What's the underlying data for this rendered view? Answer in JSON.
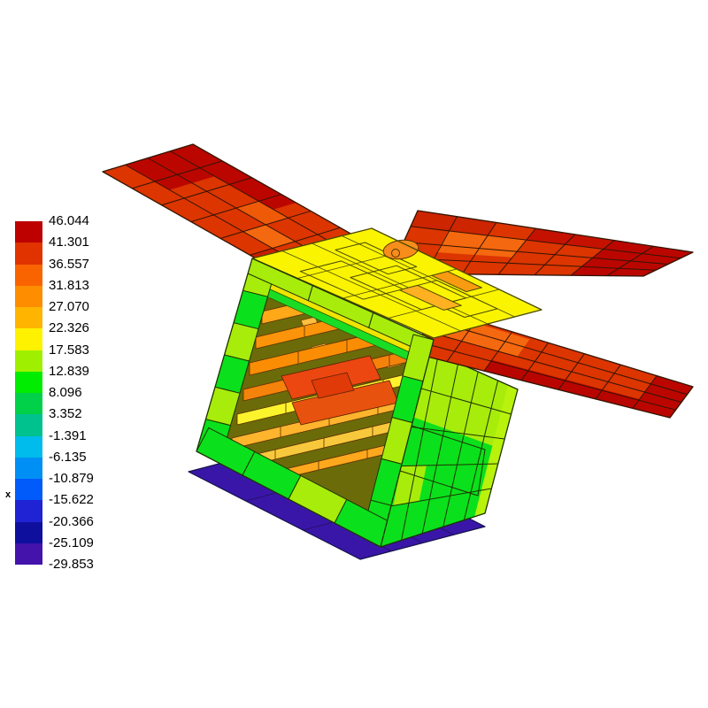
{
  "app": {
    "background": "#ffffff"
  },
  "legend": {
    "marker_label": "x",
    "values": [
      "46.044",
      "41.301",
      "36.557",
      "31.813",
      "27.070",
      "22.326",
      "17.583",
      "12.839",
      "8.096",
      "3.352",
      "-1.391",
      "-6.135",
      "-10.879",
      "-15.622",
      "-20.366",
      "-25.109",
      "-29.853"
    ],
    "band_colors": [
      "#BD0000",
      "#E03300",
      "#FA6400",
      "#FF8D00",
      "#FFB500",
      "#FFF200",
      "#9FF000",
      "#00EC00",
      "#00D148",
      "#00C28E",
      "#00BCEC",
      "#0090F5",
      "#015BFA",
      "#2023D3",
      "#0F0F9E",
      "#4413AB"
    ]
  },
  "chart_data": {
    "type": "heatmap",
    "title": "3D satellite thermal contour plot with temperature colorbar",
    "legend_position": "left",
    "colorbar_levels": [
      46.044,
      41.301,
      36.557,
      31.813,
      27.07,
      22.326,
      17.583,
      12.839,
      8.096,
      3.352,
      -1.391,
      -6.135,
      -10.879,
      -15.622,
      -20.366,
      -25.109,
      -29.853
    ],
    "colorbar_colors": [
      "#BD0000",
      "#E03300",
      "#FA6400",
      "#FF8D00",
      "#FFB500",
      "#FFF200",
      "#9FF000",
      "#00EC00",
      "#00D148",
      "#00C28E",
      "#00BCEC",
      "#0090F5",
      "#015BFA",
      "#2023D3",
      "#0F0F9E",
      "#4413AB"
    ],
    "elements": [
      {
        "part": "left solar array",
        "approx_value_range": [
          31.8,
          46.0
        ]
      },
      {
        "part": "right upper solar array",
        "approx_value_range": [
          31.8,
          46.0
        ]
      },
      {
        "part": "right lower solar array",
        "approx_value_range": [
          31.8,
          46.0
        ]
      },
      {
        "part": "body top deck",
        "approx_value_range": [
          17.6,
          31.8
        ]
      },
      {
        "part": "body frame and right side panel",
        "approx_value_range": [
          3.4,
          17.6
        ]
      },
      {
        "part": "internal equipment shelves",
        "approx_value_range": [
          22.3,
          41.3
        ]
      },
      {
        "part": "deployed bottom panel",
        "approx_value_range": [
          -29.9,
          -15.6
        ]
      }
    ]
  },
  "palette": {
    "wingBase": "#DC3500",
    "wingDark": "#BB0600",
    "wingDark2": "#C51200",
    "wingMid": "#C91E00",
    "wingLight": "#F4680F",
    "wingLight2": "#EE5A08",
    "topFace": "#FAF400",
    "topPatchOrange": "#FFB121",
    "topPatchOrange2": "#F89B10",
    "antenna": "#F78D1A",
    "frameYG": "#A8EC0B",
    "frameYG2": "#B9F20C",
    "frameGreen": "#0BE01C",
    "cavity": "#6B6B0A",
    "deck": "#EFE400",
    "deckGreen": "#19DD25",
    "shelf1": "#F7EF10",
    "shelf2": "#FFA818",
    "shelf3": "#FB940A",
    "shelf4": "#FB8D05",
    "shelf5": "#F5820A",
    "shelf6": "#FCF32D",
    "shelf7": "#FFB42E",
    "shelf8": "#F8C83C",
    "shelf9": "#FFA81E",
    "hot1": "#EC4711",
    "hot2": "#E8520F",
    "hot3": "#DF3A08",
    "tab": "#FFBE40",
    "panelIndigo": "#3A16A8",
    "panelRoyal": "#1A2BD0",
    "pebble": "#FFFFFF",
    "strokeWing": "#331400",
    "strokeGreen": "#1E3300",
    "strokeYellow": "#4A4A00",
    "strokeBlue": "#14144A"
  }
}
